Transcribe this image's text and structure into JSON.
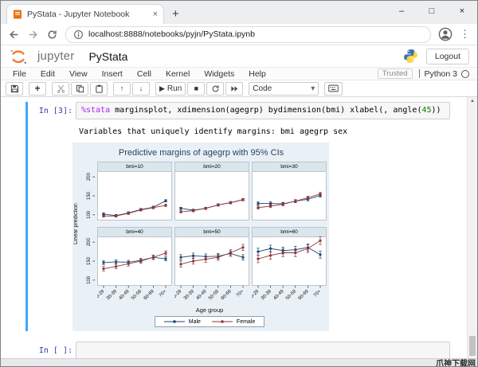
{
  "browser": {
    "tab": {
      "title": "PyStata - Jupyter Notebook",
      "close_glyph": "×",
      "new_tab_glyph": "+"
    },
    "controls": {
      "minimize": "–",
      "maximize": "□",
      "close": "×"
    },
    "url": "localhost:8888/notebooks/pyjn/PyStata.ipynb",
    "menu_dots_glyph": "⋮"
  },
  "header": {
    "logo_text": "jupyter",
    "notebook_name": "PyStata",
    "logout_label": "Logout"
  },
  "menubar": {
    "items": [
      "File",
      "Edit",
      "View",
      "Insert",
      "Cell",
      "Kernel",
      "Widgets",
      "Help"
    ],
    "trusted_label": "Trusted",
    "kernel_name": "Python 3"
  },
  "toolbar": {
    "run_label": "Run",
    "cell_type_value": "Code",
    "glyphs": {
      "plus": "+",
      "up": "↑",
      "down": "↓",
      "play": "▶",
      "stop": "■",
      "chevron": "▾"
    }
  },
  "cells": {
    "cell1_prompt": "In [3]:",
    "code_magic": "%stata",
    "code_main": " marginsplot, xdimension(agegrp) bydimension(bmi) xlabel(, angle(",
    "code_number": "45",
    "code_tail": "))",
    "output_text": "Variables that uniquely identify margins: bmi agegrp sex",
    "cell2_prompt": "In [ ]:"
  },
  "watermark": "爪神下载网",
  "chart_data": {
    "type": "line",
    "title": "Predictive margins of agegrp with 95% CIs",
    "xlabel": "Age group",
    "ylabel": "Linear prediction",
    "categories": [
      "20-29",
      "30-39",
      "40-49",
      "50-59",
      "60-69",
      "70+"
    ],
    "yticks": [
      100,
      150,
      200
    ],
    "ylim": [
      85,
      215
    ],
    "legend": [
      "Male",
      "Female"
    ],
    "colors": [
      "#1a476f",
      "#90353b"
    ],
    "grid": false,
    "legend_position": "bottom-center",
    "panels": [
      {
        "label": "bmi=10",
        "series": [
          {
            "name": "Male",
            "values": [
              102,
              98,
              105,
              114,
              120,
              137
            ],
            "ci": 3
          },
          {
            "name": "Female",
            "values": [
              97,
              97,
              104,
              113,
              119,
              125
            ],
            "ci": 3
          }
        ]
      },
      {
        "label": "bmi=20",
        "series": [
          {
            "name": "Male",
            "values": [
              117,
              112,
              117,
              126,
              132,
              140
            ],
            "ci": 3
          },
          {
            "name": "Female",
            "values": [
              108,
              111,
              117,
              126,
              132,
              140
            ],
            "ci": 3
          }
        ]
      },
      {
        "label": "bmi=30",
        "series": [
          {
            "name": "Male",
            "values": [
              130,
              130,
              129,
              136,
              141,
              151
            ],
            "ci": 4
          },
          {
            "name": "Female",
            "values": [
              119,
              123,
              128,
              136,
              145,
              155
            ],
            "ci": 4
          }
        ]
      },
      {
        "label": "bmi=40",
        "series": [
          {
            "name": "Male",
            "values": [
              146,
              148,
              147,
              152,
              160,
              156
            ],
            "ci": 5
          },
          {
            "name": "Female",
            "values": [
              130,
              136,
              143,
              150,
              160,
              171
            ],
            "ci": 6
          }
        ]
      },
      {
        "label": "bmi=50",
        "series": [
          {
            "name": "Male",
            "values": [
              160,
              164,
              162,
              163,
              170,
              160
            ],
            "ci": 7
          },
          {
            "name": "Female",
            "values": [
              142,
              150,
              155,
              160,
              172,
              186
            ],
            "ci": 8
          }
        ]
      },
      {
        "label": "bmi=60",
        "series": [
          {
            "name": "Male",
            "values": [
              175,
              183,
              178,
              180,
              186,
              167
            ],
            "ci": 9
          },
          {
            "name": "Female",
            "values": [
              156,
              165,
              172,
              172,
              183,
              204
            ],
            "ci": 10
          }
        ]
      }
    ]
  }
}
